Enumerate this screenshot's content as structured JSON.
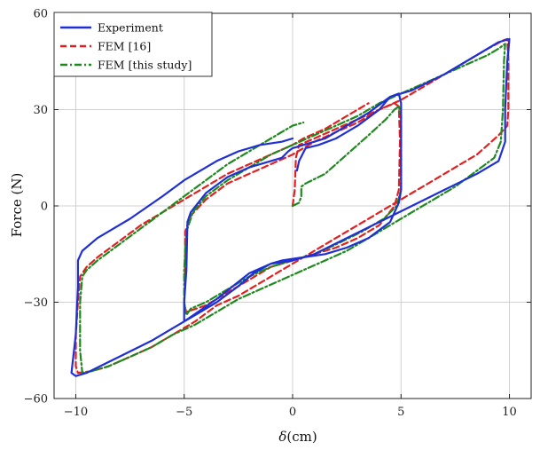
{
  "chart_data": {
    "type": "line",
    "title": "",
    "xlabel_symbol": "δ",
    "xlabel_unit": "(cm)",
    "ylabel": "Force (N)",
    "xlim": [
      -11,
      11
    ],
    "ylim": [
      -60,
      60
    ],
    "xticks": [
      -10,
      -5,
      0,
      5,
      10
    ],
    "yticks": [
      -60,
      -30,
      0,
      30,
      60
    ],
    "grid": true,
    "legend_position": "top-left",
    "series": [
      {
        "name": "Experiment",
        "color": "#1f2fd6",
        "style": "solid",
        "points": [
          [
            0.2,
            11
          ],
          [
            0.3,
            14
          ],
          [
            0.6,
            18
          ],
          [
            1.2,
            19
          ],
          [
            2.0,
            21
          ],
          [
            3.0,
            25
          ],
          [
            4.0,
            30
          ],
          [
            4.5,
            34
          ],
          [
            4.9,
            35
          ],
          [
            5.0,
            32
          ],
          [
            5.0,
            20
          ],
          [
            5.0,
            5
          ],
          [
            4.9,
            1
          ],
          [
            4.5,
            -5
          ],
          [
            3.5,
            -10
          ],
          [
            2.5,
            -13
          ],
          [
            1.5,
            -15
          ],
          [
            0.5,
            -16
          ],
          [
            -0.5,
            -17
          ],
          [
            -1.0,
            -18
          ],
          [
            -1.8,
            -21
          ],
          [
            -2.5,
            -25
          ],
          [
            -3.5,
            -30
          ],
          [
            -4.5,
            -34
          ],
          [
            -5.0,
            -36
          ],
          [
            -5.0,
            -30
          ],
          [
            -4.9,
            -20
          ],
          [
            -4.85,
            -5
          ],
          [
            -4.7,
            -2
          ],
          [
            -4.0,
            4
          ],
          [
            -3.0,
            9
          ],
          [
            -2.0,
            12
          ],
          [
            -1.0,
            14
          ],
          [
            -0.5,
            15
          ],
          [
            -0.2,
            17
          ],
          [
            0.0,
            18
          ],
          [
            0.5,
            19
          ],
          [
            1.5,
            21
          ],
          [
            2.5,
            25
          ],
          [
            3.5,
            29
          ],
          [
            4.5,
            34
          ],
          [
            5.5,
            36
          ],
          [
            7.0,
            41
          ],
          [
            8.5,
            47
          ],
          [
            9.5,
            51
          ],
          [
            10.0,
            52
          ],
          [
            9.9,
            45
          ],
          [
            9.8,
            30
          ],
          [
            9.8,
            20
          ],
          [
            9.5,
            14
          ],
          [
            8.5,
            10
          ],
          [
            7.0,
            5
          ],
          [
            5.5,
            0
          ],
          [
            4.0,
            -5
          ],
          [
            2.5,
            -10
          ],
          [
            1.0,
            -15
          ],
          [
            0.0,
            -17
          ],
          [
            -1.0,
            -18
          ],
          [
            -2.0,
            -21
          ],
          [
            -3.5,
            -29
          ],
          [
            -5.0,
            -36
          ],
          [
            -6.5,
            -42
          ],
          [
            -8.0,
            -47
          ],
          [
            -9.5,
            -52
          ],
          [
            -10.0,
            -53
          ],
          [
            -10.2,
            -52
          ],
          [
            -10.0,
            -40
          ],
          [
            -9.9,
            -25
          ],
          [
            -9.9,
            -17
          ],
          [
            -9.7,
            -14
          ],
          [
            -9.0,
            -10
          ],
          [
            -7.5,
            -4
          ],
          [
            -6.0,
            3
          ],
          [
            -5.0,
            8
          ],
          [
            -3.5,
            14
          ],
          [
            -2.5,
            17
          ],
          [
            -1.5,
            19
          ],
          [
            -0.5,
            20
          ],
          [
            0.0,
            21
          ]
        ]
      },
      {
        "name": "FEM [16]",
        "color": "#e32020",
        "style": "dashed",
        "points": [
          [
            0.0,
            0
          ],
          [
            0.1,
            5
          ],
          [
            0.15,
            15
          ],
          [
            0.3,
            19
          ],
          [
            1.0,
            21
          ],
          [
            2.0,
            24
          ],
          [
            3.0,
            27
          ],
          [
            4.0,
            30
          ],
          [
            4.7,
            32
          ],
          [
            4.9,
            31
          ],
          [
            4.95,
            20
          ],
          [
            4.9,
            5
          ],
          [
            4.7,
            0
          ],
          [
            4.0,
            -6
          ],
          [
            3.0,
            -10
          ],
          [
            2.0,
            -13
          ],
          [
            1.0,
            -15
          ],
          [
            0.0,
            -17
          ],
          [
            -1.0,
            -19
          ],
          [
            -2.0,
            -23
          ],
          [
            -3.0,
            -27
          ],
          [
            -4.0,
            -31
          ],
          [
            -4.9,
            -33
          ],
          [
            -5.0,
            -31
          ],
          [
            -4.95,
            -20
          ],
          [
            -4.95,
            -8
          ],
          [
            -4.7,
            -3
          ],
          [
            -4.0,
            2
          ],
          [
            -3.0,
            7
          ],
          [
            -2.0,
            10
          ],
          [
            -1.0,
            13
          ],
          [
            0.0,
            16
          ],
          [
            1.0,
            20
          ],
          [
            2.0,
            23
          ],
          [
            3.0,
            26
          ],
          [
            4.0,
            30
          ],
          [
            5.0,
            33
          ],
          [
            6.5,
            39
          ],
          [
            8.0,
            45
          ],
          [
            9.0,
            49
          ],
          [
            9.7,
            51.5
          ],
          [
            9.9,
            52
          ],
          [
            9.95,
            45
          ],
          [
            9.95,
            30
          ],
          [
            9.9,
            25
          ],
          [
            9.5,
            22
          ],
          [
            8.5,
            16
          ],
          [
            7.5,
            12
          ],
          [
            6.5,
            8
          ],
          [
            5.5,
            4
          ],
          [
            4.5,
            0
          ],
          [
            3.5,
            -4
          ],
          [
            2.5,
            -8
          ],
          [
            1.5,
            -12
          ],
          [
            0.5,
            -16
          ],
          [
            -0.5,
            -20
          ],
          [
            -1.5,
            -24
          ],
          [
            -2.5,
            -28
          ],
          [
            -3.5,
            -31
          ],
          [
            -4.5,
            -36
          ],
          [
            -5.5,
            -40
          ],
          [
            -6.5,
            -44
          ],
          [
            -7.5,
            -47
          ],
          [
            -8.5,
            -50
          ],
          [
            -9.3,
            -51.5
          ],
          [
            -9.9,
            -52
          ],
          [
            -10.0,
            -50
          ],
          [
            -10.0,
            -40
          ],
          [
            -9.9,
            -30
          ],
          [
            -9.8,
            -22
          ],
          [
            -9.5,
            -19
          ],
          [
            -9.0,
            -16
          ],
          [
            -8.0,
            -11
          ],
          [
            -7.0,
            -6
          ],
          [
            -6.0,
            -2
          ],
          [
            -5.0,
            2
          ],
          [
            -4.0,
            6
          ],
          [
            -3.0,
            10
          ],
          [
            -2.0,
            13
          ],
          [
            -1.0,
            16
          ],
          [
            0.0,
            19
          ],
          [
            0.5,
            21
          ],
          [
            1.5,
            24
          ],
          [
            2.5,
            28
          ],
          [
            3.5,
            32
          ]
        ]
      },
      {
        "name": "FEM [this study]",
        "color": "#1e8a1e",
        "style": "dashdot",
        "points": [
          [
            0.0,
            0
          ],
          [
            0.3,
            1
          ],
          [
            0.4,
            3
          ],
          [
            0.4,
            6
          ],
          [
            0.6,
            7
          ],
          [
            1.5,
            10
          ],
          [
            2.5,
            16
          ],
          [
            3.5,
            22
          ],
          [
            4.3,
            27
          ],
          [
            4.7,
            30
          ],
          [
            4.9,
            31
          ],
          [
            5.0,
            28
          ],
          [
            5.0,
            15
          ],
          [
            5.0,
            5
          ],
          [
            4.8,
            0
          ],
          [
            4.2,
            -4
          ],
          [
            3.2,
            -8
          ],
          [
            2.0,
            -12
          ],
          [
            1.0,
            -15
          ],
          [
            0.0,
            -17
          ],
          [
            -1.0,
            -19
          ],
          [
            -2.0,
            -22
          ],
          [
            -3.0,
            -26
          ],
          [
            -4.0,
            -30
          ],
          [
            -4.7,
            -32
          ],
          [
            -4.9,
            -34
          ],
          [
            -5.0,
            -30
          ],
          [
            -5.0,
            -20
          ],
          [
            -4.9,
            -8
          ],
          [
            -4.6,
            -2
          ],
          [
            -4.0,
            3
          ],
          [
            -3.0,
            8
          ],
          [
            -2.0,
            12
          ],
          [
            -1.0,
            16
          ],
          [
            0.0,
            19
          ],
          [
            1.0,
            22
          ],
          [
            2.0,
            25
          ],
          [
            3.0,
            28
          ],
          [
            4.0,
            32
          ],
          [
            5.0,
            35
          ],
          [
            6.0,
            38
          ],
          [
            7.0,
            41
          ],
          [
            8.0,
            44
          ],
          [
            9.0,
            47
          ],
          [
            9.5,
            49
          ],
          [
            9.8,
            50.5
          ],
          [
            9.75,
            45
          ],
          [
            9.7,
            30
          ],
          [
            9.6,
            20
          ],
          [
            9.3,
            15
          ],
          [
            8.5,
            11
          ],
          [
            7.5,
            6
          ],
          [
            6.5,
            2
          ],
          [
            5.5,
            -2
          ],
          [
            4.5,
            -6
          ],
          [
            3.5,
            -10
          ],
          [
            2.5,
            -14
          ],
          [
            1.5,
            -17
          ],
          [
            0.5,
            -20
          ],
          [
            -0.5,
            -23
          ],
          [
            -1.5,
            -26
          ],
          [
            -2.5,
            -29
          ],
          [
            -3.5,
            -33
          ],
          [
            -4.5,
            -37
          ],
          [
            -5.5,
            -40
          ],
          [
            -6.5,
            -44
          ],
          [
            -7.5,
            -47
          ],
          [
            -8.5,
            -50
          ],
          [
            -9.3,
            -51.5
          ],
          [
            -9.7,
            -52
          ],
          [
            -9.8,
            -45
          ],
          [
            -9.8,
            -30
          ],
          [
            -9.7,
            -22
          ],
          [
            -9.5,
            -20
          ],
          [
            -9.0,
            -17
          ],
          [
            -8.0,
            -12
          ],
          [
            -7.0,
            -7
          ],
          [
            -6.0,
            -2
          ],
          [
            -5.0,
            3
          ],
          [
            -4.0,
            8
          ],
          [
            -3.0,
            13
          ],
          [
            -2.0,
            17
          ],
          [
            -1.0,
            21
          ],
          [
            0.0,
            25
          ],
          [
            0.5,
            26
          ]
        ]
      }
    ]
  }
}
